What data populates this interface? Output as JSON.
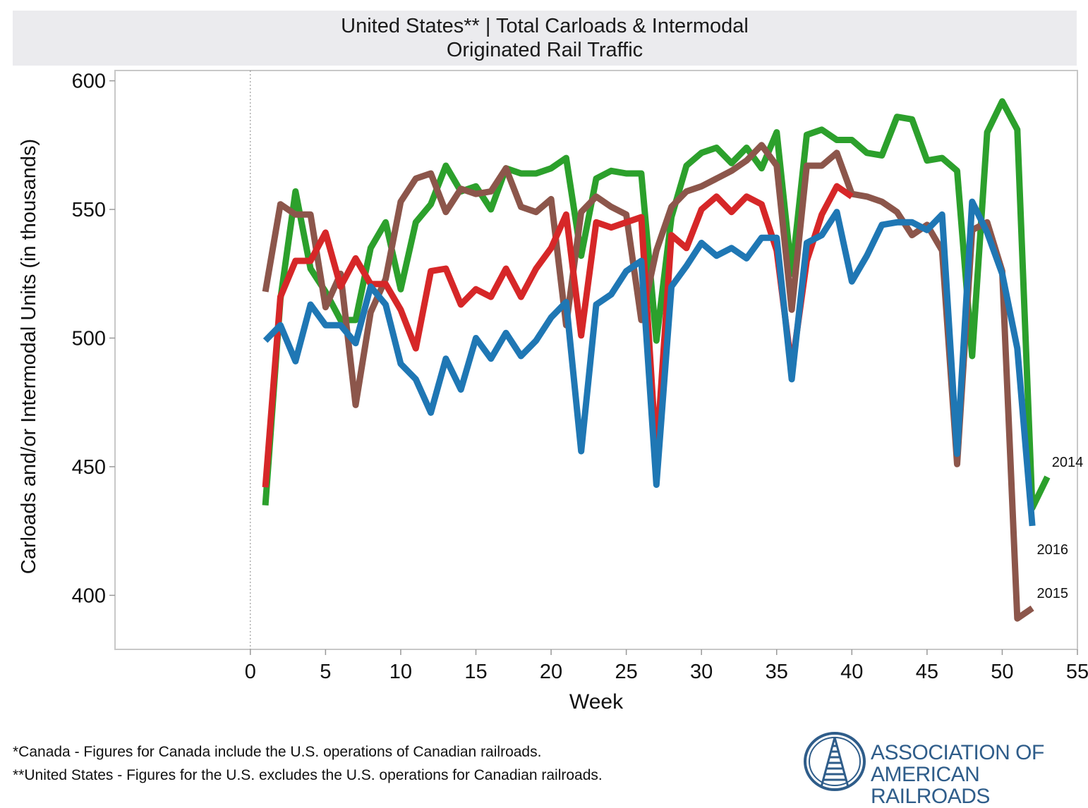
{
  "title": {
    "line1": "United States** | Total Carloads & Intermodal",
    "line2": "Originated Rail Traffic"
  },
  "chart_data": {
    "type": "line",
    "xlabel": "Week",
    "ylabel": "Carloads and/or Intermodal Units (in thousands)",
    "xlim": [
      -9,
      55
    ],
    "ylim": [
      379,
      604
    ],
    "xticks": [
      0,
      5,
      10,
      15,
      20,
      25,
      30,
      35,
      40,
      45,
      50,
      55
    ],
    "yticks": [
      400,
      450,
      500,
      550,
      600
    ],
    "grid": false,
    "series": [
      {
        "name": "2014",
        "color": "#2ca02c",
        "x": [
          1,
          2,
          3,
          4,
          5,
          6,
          7,
          8,
          9,
          10,
          11,
          12,
          13,
          14,
          15,
          16,
          17,
          18,
          19,
          20,
          21,
          22,
          23,
          24,
          25,
          26,
          27,
          28,
          29,
          30,
          31,
          32,
          33,
          34,
          35,
          36,
          37,
          38,
          39,
          40,
          41,
          42,
          43,
          44,
          45,
          46,
          47,
          48,
          49,
          50,
          51,
          52,
          53
        ],
        "values": [
          435,
          515,
          557,
          527,
          518,
          507,
          507,
          535,
          545,
          519,
          545,
          552,
          567,
          557,
          559,
          550,
          566,
          564,
          564,
          566,
          570,
          532,
          562,
          565,
          564,
          564,
          499,
          547,
          567,
          572,
          574,
          568,
          574,
          566,
          580,
          525,
          579,
          581,
          577,
          577,
          572,
          571,
          586,
          585,
          569,
          570,
          565,
          493,
          580,
          592,
          581,
          434,
          446
        ]
      },
      {
        "name": "2015",
        "color": "#8c564b",
        "x": [
          1,
          2,
          3,
          4,
          5,
          6,
          7,
          8,
          9,
          10,
          11,
          12,
          13,
          14,
          15,
          16,
          17,
          18,
          19,
          20,
          21,
          22,
          23,
          24,
          25,
          26,
          27,
          28,
          29,
          30,
          31,
          32,
          33,
          34,
          35,
          36,
          37,
          38,
          39,
          40,
          41,
          42,
          43,
          44,
          45,
          46,
          47,
          48,
          49,
          50,
          51,
          52
        ],
        "values": [
          518,
          552,
          548,
          548,
          512,
          525,
          474,
          510,
          523,
          553,
          562,
          564,
          549,
          558,
          556,
          557,
          566,
          551,
          549,
          554,
          505,
          549,
          555,
          551,
          548,
          507,
          534,
          551,
          557,
          559,
          562,
          565,
          569,
          575,
          567,
          511,
          567,
          567,
          572,
          556,
          555,
          553,
          549,
          540,
          544,
          534,
          451,
          542,
          545,
          526,
          391,
          395
        ]
      },
      {
        "name": "",
        "color": "#d62728",
        "x": [
          1,
          2,
          3,
          4,
          5,
          6,
          7,
          8,
          9,
          10,
          11,
          12,
          13,
          14,
          15,
          16,
          17,
          18,
          19,
          20,
          21,
          22,
          23,
          24,
          25,
          26,
          27,
          28,
          29,
          30,
          31,
          32,
          33,
          34,
          35,
          36,
          37,
          38,
          39,
          40
        ],
        "values": [
          442,
          516,
          530,
          530,
          541,
          520,
          531,
          521,
          521,
          511,
          496,
          526,
          527,
          513,
          519,
          516,
          527,
          516,
          527,
          535,
          548,
          501,
          545,
          543,
          545,
          547,
          454,
          540,
          535,
          550,
          555,
          549,
          555,
          552,
          534,
          488,
          530,
          548,
          559,
          555
        ]
      },
      {
        "name": "2016",
        "color": "#1f77b4",
        "x": [
          1,
          2,
          3,
          4,
          5,
          6,
          7,
          8,
          9,
          10,
          11,
          12,
          13,
          14,
          15,
          16,
          17,
          18,
          19,
          20,
          21,
          22,
          23,
          24,
          25,
          26,
          27,
          28,
          29,
          30,
          31,
          32,
          33,
          34,
          35,
          36,
          37,
          38,
          39,
          40,
          41,
          42,
          43,
          44,
          45,
          46,
          47,
          48,
          49,
          50,
          51,
          52
        ],
        "values": [
          499,
          505,
          491,
          513,
          505,
          505,
          498,
          520,
          513,
          490,
          484,
          471,
          492,
          480,
          500,
          492,
          502,
          493,
          499,
          508,
          514,
          456,
          513,
          517,
          526,
          530,
          443,
          520,
          528,
          537,
          532,
          535,
          531,
          539,
          539,
          484,
          537,
          540,
          549,
          522,
          532,
          544,
          545,
          545,
          542,
          548,
          455,
          553,
          541,
          525,
          496,
          427
        ]
      }
    ],
    "annotations": [
      {
        "text": "2014",
        "x": 53.3,
        "y": 450
      },
      {
        "text": "2016",
        "x": 52.3,
        "y": 416
      },
      {
        "text": "2015",
        "x": 52.3,
        "y": 399
      }
    ]
  },
  "footnotes": [
    "*Canada - Figures for Canada include the U.S. operations of Canadian railroads.",
    "**United States - Figures for the U.S. excludes the U.S. operations for Canadian railroads."
  ],
  "logo": {
    "line1": "ASSOCIATION OF",
    "line2": "AMERICAN RAILROADS",
    "color": "#2f5d8a"
  }
}
